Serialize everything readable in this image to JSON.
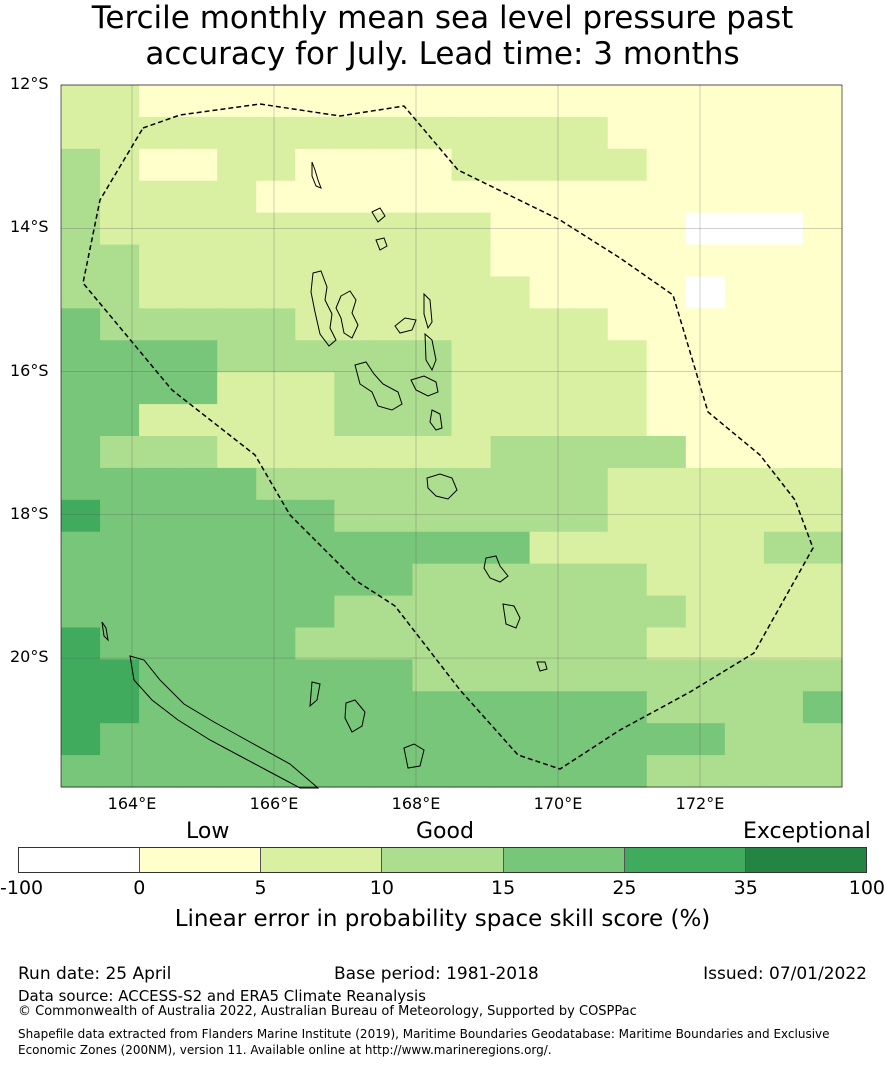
{
  "title": {
    "line1": "Tercile monthly mean sea level pressure past",
    "line2": "accuracy for July. Lead time: 3 months"
  },
  "map": {
    "lon_range": [
      163,
      174
    ],
    "lat_range": [
      -21.8,
      -12
    ],
    "lon_ticks": [
      {
        "value": 164,
        "label": "164°E"
      },
      {
        "value": 166,
        "label": "166°E"
      },
      {
        "value": 168,
        "label": "168°E"
      },
      {
        "value": 170,
        "label": "170°E"
      },
      {
        "value": 172,
        "label": "172°E"
      }
    ],
    "lat_ticks": [
      {
        "value": -12,
        "label": "12°S"
      },
      {
        "value": -14,
        "label": "14°S"
      },
      {
        "value": -16,
        "label": "16°S"
      },
      {
        "value": -18,
        "label": "18°S"
      },
      {
        "value": -20,
        "label": "20°S"
      }
    ],
    "grid": true,
    "cell_size_deg": 0.55,
    "colors": [
      "#ffffff",
      "#ffffcc",
      "#d9f0a3",
      "#addd8e",
      "#78c679",
      "#41ab5d",
      "#238443"
    ],
    "eez_boundary_style": "dashed black"
  },
  "colorbar": {
    "boundaries": [
      "-100",
      "0",
      "5",
      "10",
      "15",
      "25",
      "35",
      "100"
    ],
    "segments": [
      {
        "from": -100,
        "to": 0,
        "color": "#ffffff"
      },
      {
        "from": 0,
        "to": 5,
        "color": "#ffffcc"
      },
      {
        "from": 5,
        "to": 10,
        "color": "#d9f0a3"
      },
      {
        "from": 10,
        "to": 15,
        "color": "#addd8e"
      },
      {
        "from": 15,
        "to": 25,
        "color": "#78c679"
      },
      {
        "from": 25,
        "to": 35,
        "color": "#41ab5d"
      },
      {
        "from": 35,
        "to": 100,
        "color": "#238443"
      }
    ],
    "categories": {
      "low": "Low",
      "good": "Good",
      "exceptional": "Exceptional"
    },
    "title": "Linear error in probability space skill score (%)"
  },
  "footer": {
    "run_date": "Run date: 25 April",
    "base_period": "Base period: 1981-2018",
    "issued": "Issued: 07/01/2022",
    "data_source": "Data source: ACCESS-S2 and ERA5 Climate Reanalysis",
    "copyright": "© Commonwealth of Australia 2022, Australian Bureau of Meteorology, Supported by COSPPac",
    "shapefile_line1": "Shapefile data extracted from Flanders Marine Institute (2019), Maritime Boundaries Geodatabase: Maritime Boundaries and Exclusive",
    "shapefile_line2": "Economic Zones (200NM), version 11. Available online at http://www.marineregions.org/."
  }
}
